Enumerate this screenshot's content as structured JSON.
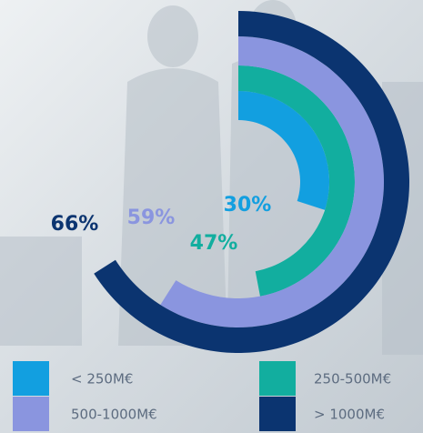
{
  "chart_data": {
    "type": "radial_bar",
    "categories": [
      "< 250M€",
      "250-500M€",
      "500-1000M€",
      "> 1000M€"
    ],
    "values": [
      30,
      47,
      59,
      66
    ],
    "value_labels": [
      "30%",
      "47%",
      "59%",
      "66%"
    ],
    "colors": [
      "#129fe0",
      "#12ae9f",
      "#8a95df",
      "#0b3470"
    ]
  }
}
